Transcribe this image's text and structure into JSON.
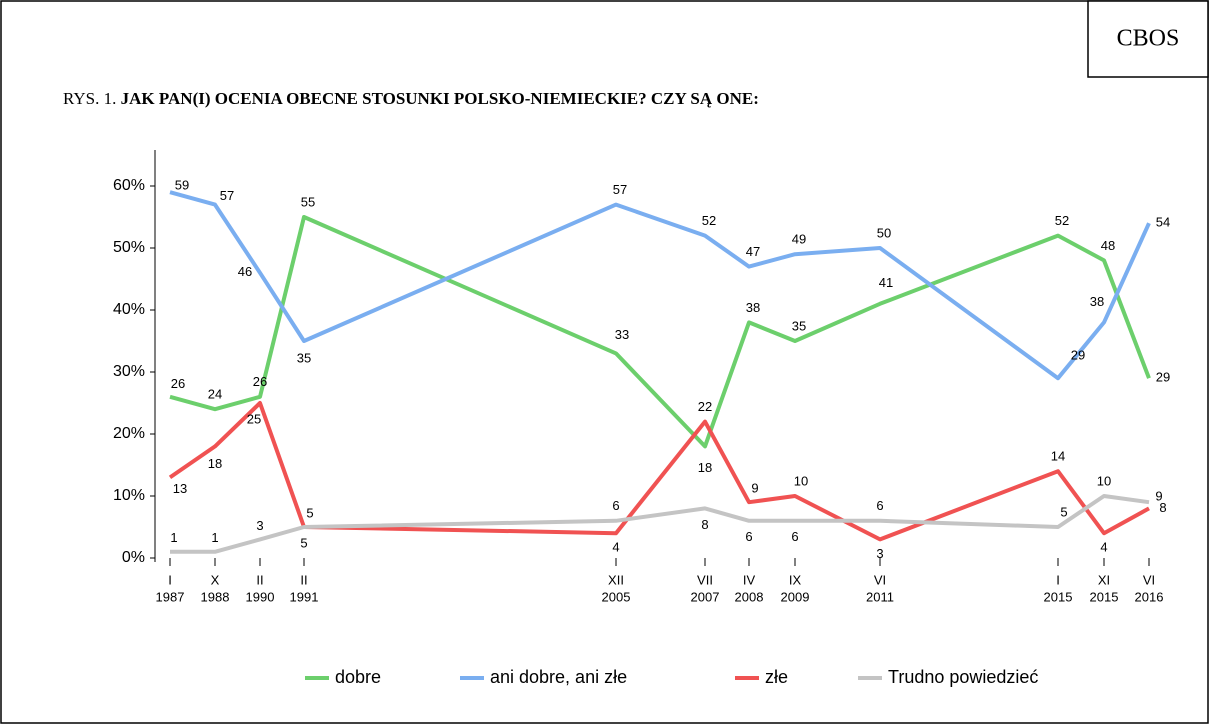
{
  "source": "CBOS",
  "chart_data": {
    "type": "line",
    "title_prefix": "RYS. 1.",
    "title": "JAK PAN(I) OCENIA OBECNE STOSUNKI POLSKO-NIEMIECKIE? CZY SĄ ONE:",
    "categories": [
      [
        "I",
        "1987"
      ],
      [
        "X",
        "1988"
      ],
      [
        "II",
        "1990"
      ],
      [
        "II",
        "1991"
      ],
      [
        "XII",
        "2005"
      ],
      [
        "VII",
        "2007"
      ],
      [
        "IV",
        "2008"
      ],
      [
        "IX",
        "2009"
      ],
      [
        "VI",
        "2011"
      ],
      [
        "I",
        "2015"
      ],
      [
        "XI",
        "2015"
      ],
      [
        "VI",
        "2016"
      ]
    ],
    "ylim": [
      0,
      60
    ],
    "yticks": [
      {
        "value": 0,
        "label": "0%"
      },
      {
        "value": 10,
        "label": "10%"
      },
      {
        "value": 20,
        "label": "20%"
      },
      {
        "value": 30,
        "label": "30%"
      },
      {
        "value": 40,
        "label": "40%"
      },
      {
        "value": 50,
        "label": "50%"
      },
      {
        "value": 60,
        "label": "60%"
      }
    ],
    "legend": "bottom",
    "series": [
      {
        "name": "dobre",
        "color": "#6ccf6c",
        "values": [
          26,
          24,
          26,
          55,
          33,
          18,
          38,
          35,
          41,
          52,
          48,
          29
        ]
      },
      {
        "name": "ani dobre, ani złe",
        "color": "#7aaef0",
        "values": [
          59,
          57,
          46,
          35,
          57,
          52,
          47,
          49,
          50,
          29,
          38,
          54
        ]
      },
      {
        "name": "złe",
        "color": "#f05252",
        "values": [
          13,
          18,
          25,
          5,
          4,
          22,
          9,
          10,
          3,
          14,
          4,
          8
        ]
      },
      {
        "name": "Trudno powiedzieć",
        "color": "#c4c4c4",
        "values": [
          1,
          1,
          3,
          5,
          6,
          8,
          6,
          6,
          6,
          5,
          10,
          9
        ]
      }
    ]
  }
}
